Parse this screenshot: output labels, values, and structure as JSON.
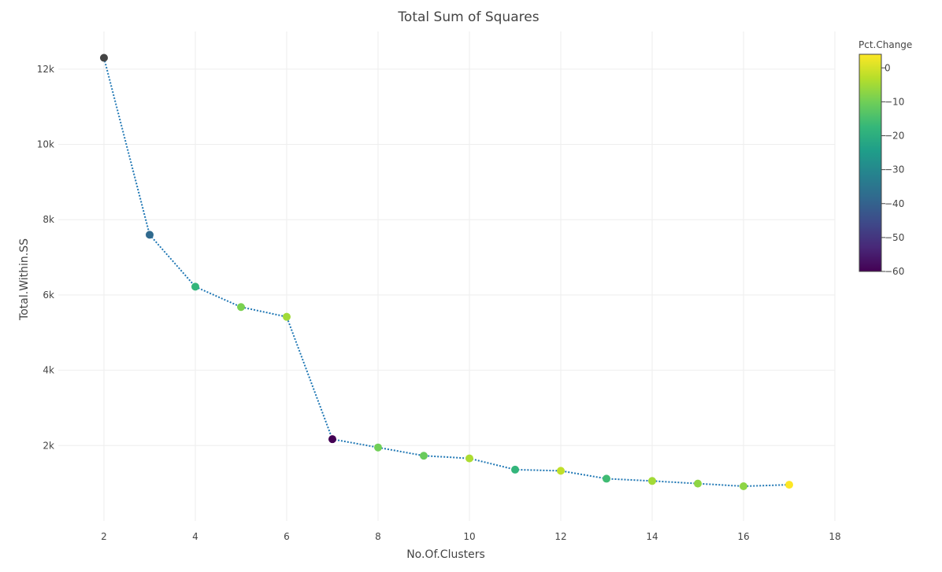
{
  "chart_data": {
    "type": "scatter",
    "mode": "lines+markers",
    "title": "Total Sum of Squares",
    "xlabel": "No.Of.Clusters",
    "ylabel": "Total.Within.SS",
    "xlim": [
      1,
      18
    ],
    "ylim": [
      0,
      13000
    ],
    "x_ticks": [
      2,
      4,
      6,
      8,
      10,
      12,
      14,
      16,
      18
    ],
    "x_tick_labels": [
      "2",
      "4",
      "6",
      "8",
      "10",
      "12",
      "14",
      "16",
      "18"
    ],
    "y_ticks": [
      2000,
      4000,
      6000,
      8000,
      10000,
      12000
    ],
    "y_tick_labels": [
      "2k",
      "4k",
      "6k",
      "8k",
      "10k",
      "12k"
    ],
    "grid": true,
    "line_style": "dotted",
    "line_color": "#1f77b4",
    "series": [
      {
        "x": [
          2,
          3,
          4,
          5,
          6,
          7,
          8,
          9,
          10,
          11,
          12,
          13,
          14,
          15,
          16,
          17
        ],
        "y": [
          12300,
          7600,
          6220,
          5680,
          5420,
          2170,
          1950,
          1730,
          1660,
          1360,
          1330,
          1120,
          1060,
          990,
          920,
          960
        ],
        "color_value": [
          null,
          -38,
          -18,
          -9,
          -5,
          -60,
          -10,
          -11,
          -4,
          -18,
          -2,
          -16,
          -5,
          -7,
          -7,
          4
        ]
      }
    ],
    "missing_color": "#444444",
    "colorbar": {
      "title": "Pct.Change",
      "min": -60,
      "max": 4,
      "ticks": [
        0,
        -10,
        -20,
        -30,
        -40,
        -50,
        -60
      ],
      "tick_labels": [
        "0",
        "−10",
        "−20",
        "−30",
        "−40",
        "−50",
        "−60"
      ],
      "colorscale": [
        "#440154",
        "#482878",
        "#3e4989",
        "#31688e",
        "#26828e",
        "#1f9e89",
        "#35b779",
        "#6ece58",
        "#b5de2b",
        "#fde725"
      ],
      "placement": "right"
    }
  }
}
